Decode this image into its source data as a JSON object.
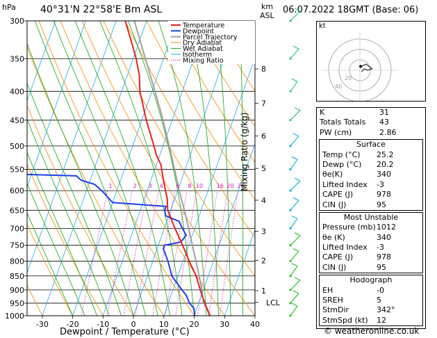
{
  "header": {
    "pressure_unit": "hPa",
    "location": "40°31'N 22°58'E Bm ASL",
    "km_unit": "km",
    "asl": "ASL",
    "datetime": "06.07.2022 18GMT (Base: 06)"
  },
  "chart_data": {
    "type": "line",
    "title": "40°31'N 22°58'E Bm ASL",
    "xlabel": "Dewpoint / Temperature (°C)",
    "ylabel": "hPa",
    "y_right_label": "Mixing Ratio (g/kg)",
    "xlim": [
      -35,
      40
    ],
    "ylim": [
      1000,
      300
    ],
    "x_ticks": [
      -30,
      -20,
      -10,
      0,
      10,
      20,
      30,
      40
    ],
    "pressure_ticks": [
      300,
      350,
      400,
      450,
      500,
      550,
      600,
      650,
      700,
      750,
      800,
      850,
      900,
      950,
      1000
    ],
    "km_ticks": [
      {
        "km": "1",
        "p": 903
      },
      {
        "km": "2",
        "p": 798
      },
      {
        "km": "3",
        "p": 708
      },
      {
        "km": "4",
        "p": 624
      },
      {
        "km": "5",
        "p": 548
      },
      {
        "km": "6",
        "p": 480
      },
      {
        "km": "7",
        "p": 420
      },
      {
        "km": "8",
        "p": 365
      }
    ],
    "lcl_pressure": 947,
    "lcl_label": "LCL",
    "mixing_ratio_labels": [
      "1",
      "2",
      "3",
      "4",
      "6",
      "8",
      "10",
      "16",
      "20",
      "25"
    ],
    "legend": [
      "Temperature",
      "Dewpoint",
      "Parcel Trajectory",
      "Dry Adiabat",
      "Wet Adiabat",
      "Isotherm",
      "Mixing Ratio"
    ],
    "legend_position": "top-right",
    "colors": {
      "temperature": "#e02020",
      "dewpoint": "#1f3ee8",
      "parcel": "#a0a0a0",
      "dry_adiabat": "#f08a00",
      "wet_adiabat": "#10a010",
      "isotherm": "#1fa8e8",
      "mixing_ratio": "#e010c0"
    },
    "series": [
      {
        "name": "Temperature",
        "points": [
          [
            1000,
            25.2
          ],
          [
            950,
            22
          ],
          [
            900,
            19
          ],
          [
            850,
            16
          ],
          [
            800,
            12
          ],
          [
            750,
            8
          ],
          [
            700,
            3.5
          ],
          [
            650,
            -1
          ],
          [
            620,
            -2.5
          ],
          [
            600,
            -4
          ],
          [
            580,
            -5.5
          ],
          [
            560,
            -7
          ],
          [
            540,
            -8.5
          ],
          [
            520,
            -11
          ],
          [
            500,
            -13
          ],
          [
            450,
            -18.5
          ],
          [
            400,
            -24
          ],
          [
            375,
            -26
          ],
          [
            350,
            -29
          ],
          [
            330,
            -32
          ],
          [
            300,
            -37
          ]
        ]
      },
      {
        "name": "Dewpoint",
        "points": [
          [
            1000,
            20.2
          ],
          [
            970,
            19
          ],
          [
            950,
            17
          ],
          [
            920,
            15
          ],
          [
            900,
            13
          ],
          [
            870,
            10
          ],
          [
            850,
            8
          ],
          [
            800,
            5
          ],
          [
            760,
            2
          ],
          [
            750,
            2
          ],
          [
            740,
            7
          ],
          [
            720,
            8
          ],
          [
            700,
            6
          ],
          [
            680,
            4
          ],
          [
            665,
            -1
          ],
          [
            650,
            -2
          ],
          [
            640,
            -2
          ],
          [
            630,
            -20
          ],
          [
            600,
            -25
          ],
          [
            590,
            -27
          ],
          [
            585,
            -28
          ],
          [
            575,
            -33
          ],
          [
            565,
            -35
          ],
          [
            560,
            -60
          ],
          [
            550,
            -65
          ],
          [
            500,
            -65
          ],
          [
            450,
            -65
          ],
          [
            400,
            -65
          ],
          [
            375,
            -70
          ],
          [
            360,
            -73
          ],
          [
            300,
            -75
          ]
        ]
      },
      {
        "name": "Parcel Trajectory",
        "points": [
          [
            1000,
            25.2
          ],
          [
            947,
            21.5
          ],
          [
            900,
            19.5
          ],
          [
            850,
            17
          ],
          [
            800,
            14.2
          ],
          [
            750,
            11.2
          ],
          [
            700,
            8
          ],
          [
            650,
            4.5
          ],
          [
            600,
            0.5
          ],
          [
            550,
            -3.5
          ],
          [
            500,
            -8
          ],
          [
            450,
            -13
          ],
          [
            400,
            -19
          ],
          [
            350,
            -26
          ],
          [
            300,
            -34
          ]
        ]
      }
    ],
    "hodograph": {
      "label": "kt",
      "ring_labels": [
        "20",
        "40"
      ],
      "points": [
        [
          0.5,
          -2.5
        ],
        [
          2,
          -3
        ],
        [
          4,
          -4
        ],
        [
          6,
          -2.5
        ],
        [
          8,
          -1
        ],
        [
          5,
          0
        ],
        [
          3,
          -1
        ],
        [
          1,
          1
        ]
      ]
    }
  },
  "indices": {
    "rows": [
      {
        "label": "K",
        "value": "31"
      },
      {
        "label": "Totals Totals",
        "value": "43"
      },
      {
        "label": "PW (cm)",
        "value": "2.86"
      }
    ]
  },
  "surface": {
    "title": "Surface",
    "rows": [
      {
        "label": "Temp (°C)",
        "value": "25.2"
      },
      {
        "label": "Dewp (°C)",
        "value": "20.2"
      },
      {
        "label": "θe(K)",
        "value": "340"
      },
      {
        "label": "Lifted Index",
        "value": "-3"
      },
      {
        "label": "CAPE (J)",
        "value": "978"
      },
      {
        "label": "CIN (J)",
        "value": "95"
      }
    ]
  },
  "unstable": {
    "title": "Most Unstable",
    "rows": [
      {
        "label": "Pressure (mb)",
        "value": "1012"
      },
      {
        "label": "θe (K)",
        "value": "340"
      },
      {
        "label": "Lifted Index",
        "value": "-3"
      },
      {
        "label": "CAPE (J)",
        "value": "978"
      },
      {
        "label": "CIN (J)",
        "value": "95"
      }
    ]
  },
  "hodograph_table": {
    "title": "Hodograph",
    "rows": [
      {
        "label": "EH",
        "value": "-0"
      },
      {
        "label": "SREH",
        "value": "5"
      },
      {
        "label": "StmDir",
        "value": "342°"
      },
      {
        "label": "StmSpd (kt)",
        "value": "12"
      }
    ]
  },
  "credit": "© weatheronline.co.uk"
}
